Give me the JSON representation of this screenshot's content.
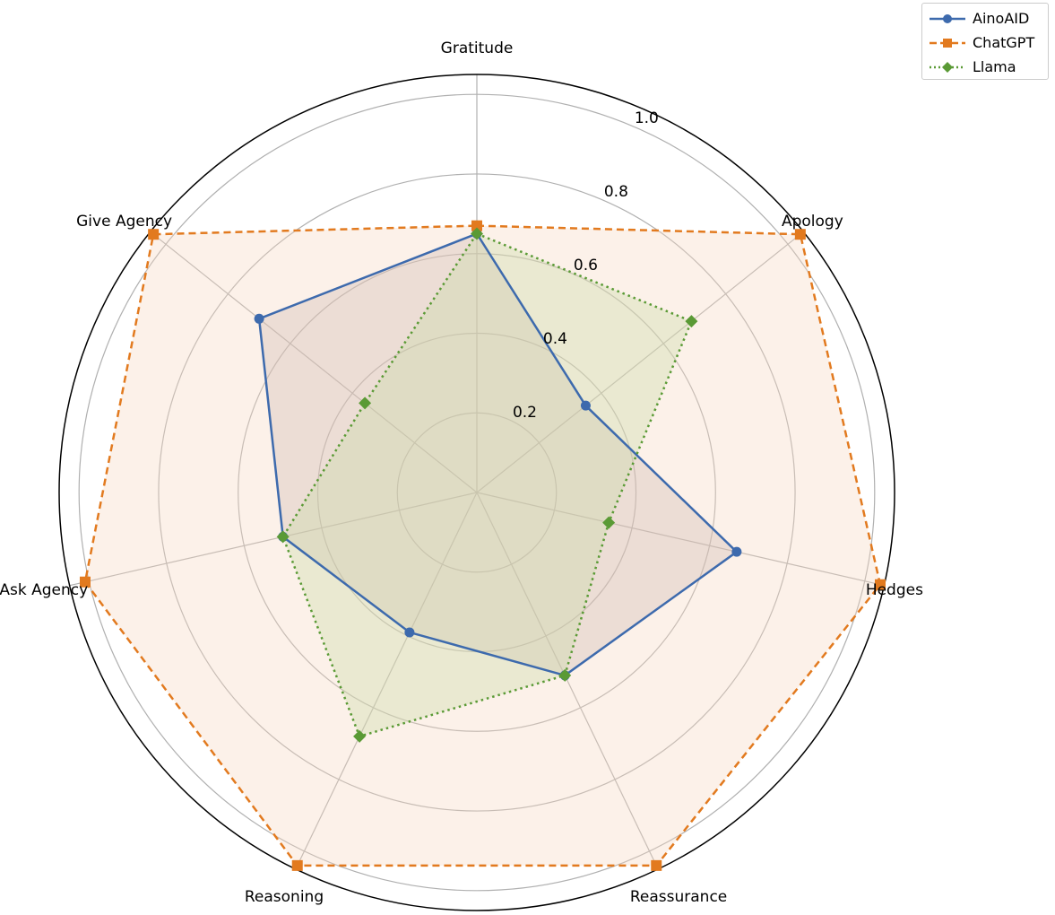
{
  "chart_data": {
    "type": "radar",
    "categories": [
      "Gratitude",
      "Apology",
      "Hedges",
      "Reassurance",
      "Reasoning",
      "Ask Agency",
      "Give Agency"
    ],
    "rlim": [
      0,
      1.05
    ],
    "rticks": [
      0.2,
      0.4,
      0.6,
      0.8,
      1.0
    ],
    "rtick_labels": [
      "0.2",
      "0.4",
      "0.6",
      "0.8",
      "1.0"
    ],
    "grid": true,
    "legend_position": "top-right",
    "series": [
      {
        "name": "AinoAID",
        "values": [
          0.65,
          0.35,
          0.67,
          0.51,
          0.39,
          0.5,
          0.7
        ],
        "color": "#3d6aad",
        "fill": "#b7a6a6",
        "line_style": "solid",
        "marker": "circle"
      },
      {
        "name": "ChatGPT",
        "values": [
          0.67,
          1.04,
          1.04,
          1.04,
          1.04,
          1.01,
          1.04
        ],
        "color": "#e27a1f",
        "fill": "#f7d8bf",
        "line_style": "dashed",
        "marker": "square"
      },
      {
        "name": "Llama",
        "values": [
          0.65,
          0.69,
          0.34,
          0.51,
          0.68,
          0.5,
          0.36
        ],
        "color": "#5a9a35",
        "fill": "#c9d9a6",
        "line_style": "dotted",
        "marker": "diamond"
      }
    ]
  }
}
